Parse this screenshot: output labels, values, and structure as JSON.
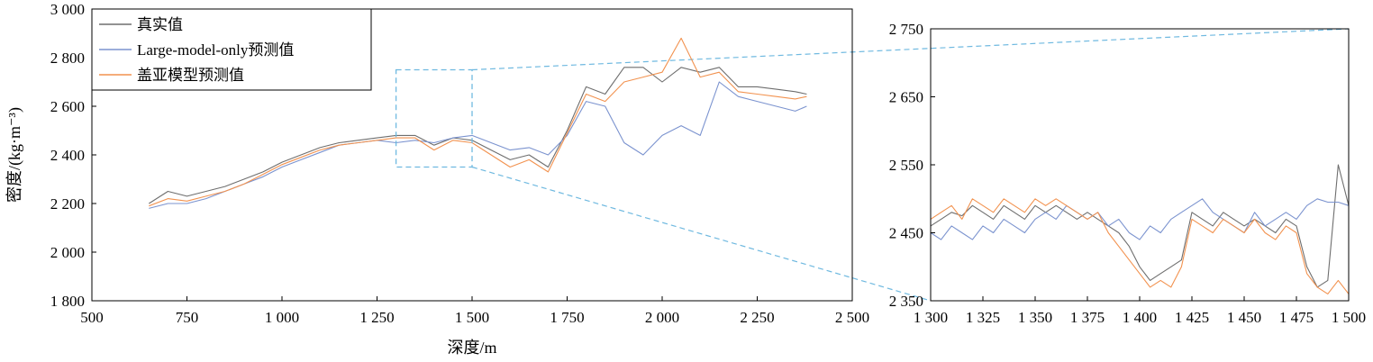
{
  "chart_data": [
    {
      "type": "line",
      "xlabel": "深度/m",
      "ylabel": "密度/(kg·m⁻³)",
      "xlim": [
        500,
        2500
      ],
      "ylim": [
        1800,
        3000
      ],
      "xticks": [
        500,
        750,
        1000,
        1250,
        1500,
        1750,
        2000,
        2250,
        2500
      ],
      "xtick_labels": [
        "500",
        "750",
        "1 000",
        "1 250",
        "1 500",
        "1 750",
        "2 000",
        "2 250",
        "2 500"
      ],
      "yticks": [
        1800,
        2000,
        2200,
        2400,
        2600,
        2800,
        3000
      ],
      "ytick_labels": [
        "1 800",
        "2 000",
        "2 200",
        "2 400",
        "2 600",
        "2 800",
        "3 000"
      ],
      "legend_position": "top-left",
      "grid": false,
      "zoom_region": {
        "x": [
          1300,
          1500
        ],
        "y": [
          2350,
          2750
        ]
      },
      "series": [
        {
          "name": "真实值",
          "color": "#6e6e6e",
          "x": [
            650,
            700,
            750,
            800,
            850,
            900,
            950,
            1000,
            1050,
            1100,
            1150,
            1200,
            1250,
            1300,
            1350,
            1400,
            1450,
            1500,
            1550,
            1600,
            1650,
            1700,
            1750,
            1800,
            1850,
            1900,
            1950,
            2000,
            2050,
            2100,
            2150,
            2200,
            2250,
            2300,
            2350,
            2380
          ],
          "y": [
            2200,
            2250,
            2230,
            2250,
            2270,
            2300,
            2330,
            2370,
            2400,
            2430,
            2450,
            2460,
            2470,
            2480,
            2480,
            2440,
            2470,
            2460,
            2420,
            2380,
            2400,
            2350,
            2500,
            2680,
            2650,
            2760,
            2760,
            2700,
            2760,
            2740,
            2760,
            2680,
            2680,
            2670,
            2660,
            2650
          ]
        },
        {
          "name": "Large-model-only预测值",
          "color": "#7b93cf",
          "x": [
            650,
            700,
            750,
            800,
            850,
            900,
            950,
            1000,
            1050,
            1100,
            1150,
            1200,
            1250,
            1300,
            1350,
            1400,
            1450,
            1500,
            1550,
            1600,
            1650,
            1700,
            1750,
            1800,
            1850,
            1900,
            1950,
            2000,
            2050,
            2100,
            2150,
            2200,
            2250,
            2300,
            2350,
            2380
          ],
          "y": [
            2180,
            2200,
            2200,
            2220,
            2250,
            2280,
            2310,
            2350,
            2380,
            2410,
            2440,
            2450,
            2460,
            2450,
            2460,
            2450,
            2470,
            2480,
            2450,
            2420,
            2430,
            2400,
            2480,
            2620,
            2600,
            2450,
            2400,
            2480,
            2520,
            2480,
            2700,
            2640,
            2620,
            2600,
            2580,
            2600
          ]
        },
        {
          "name": "盖亚模型预测值",
          "color": "#f2924f",
          "x": [
            650,
            700,
            750,
            800,
            850,
            900,
            950,
            1000,
            1050,
            1100,
            1150,
            1200,
            1250,
            1300,
            1350,
            1400,
            1450,
            1500,
            1550,
            1600,
            1650,
            1700,
            1750,
            1800,
            1850,
            1900,
            1950,
            2000,
            2050,
            2100,
            2150,
            2200,
            2250,
            2300,
            2350,
            2380
          ],
          "y": [
            2190,
            2220,
            2210,
            2230,
            2250,
            2280,
            2320,
            2360,
            2390,
            2420,
            2440,
            2450,
            2460,
            2470,
            2470,
            2420,
            2460,
            2450,
            2400,
            2350,
            2380,
            2330,
            2490,
            2650,
            2620,
            2700,
            2720,
            2740,
            2880,
            2720,
            2740,
            2660,
            2650,
            2640,
            2630,
            2640
          ]
        }
      ]
    },
    {
      "type": "line",
      "xlabel": "",
      "ylabel": "",
      "xlim": [
        1300,
        1500
      ],
      "ylim": [
        2350,
        2750
      ],
      "xticks": [
        1300,
        1325,
        1350,
        1375,
        1400,
        1425,
        1450,
        1475,
        1500
      ],
      "xtick_labels": [
        "1 300",
        "1 325",
        "1 350",
        "1 375",
        "1 400",
        "1 425",
        "1 450",
        "1 475",
        "1 500"
      ],
      "yticks": [
        2350,
        2450,
        2550,
        2650,
        2750
      ],
      "ytick_labels": [
        "2 350",
        "2 450",
        "2 550",
        "2 650",
        "2 750"
      ],
      "grid": false,
      "series": [
        {
          "name": "真实值",
          "color": "#6e6e6e",
          "x": [
            1300,
            1305,
            1310,
            1315,
            1320,
            1325,
            1330,
            1335,
            1340,
            1345,
            1350,
            1355,
            1360,
            1365,
            1370,
            1375,
            1380,
            1385,
            1390,
            1395,
            1400,
            1405,
            1410,
            1415,
            1420,
            1425,
            1430,
            1435,
            1440,
            1445,
            1450,
            1455,
            1460,
            1465,
            1470,
            1475,
            1480,
            1485,
            1490,
            1495,
            1500
          ],
          "y": [
            2460,
            2470,
            2480,
            2475,
            2490,
            2480,
            2470,
            2490,
            2480,
            2470,
            2490,
            2480,
            2490,
            2480,
            2470,
            2480,
            2470,
            2460,
            2450,
            2430,
            2400,
            2380,
            2390,
            2400,
            2410,
            2480,
            2470,
            2460,
            2480,
            2470,
            2460,
            2470,
            2460,
            2450,
            2470,
            2460,
            2400,
            2370,
            2380,
            2550,
            2490
          ]
        },
        {
          "name": "Large-model-only预测值",
          "color": "#7b93cf",
          "x": [
            1300,
            1305,
            1310,
            1315,
            1320,
            1325,
            1330,
            1335,
            1340,
            1345,
            1350,
            1355,
            1360,
            1365,
            1370,
            1375,
            1380,
            1385,
            1390,
            1395,
            1400,
            1405,
            1410,
            1415,
            1420,
            1425,
            1430,
            1435,
            1440,
            1445,
            1450,
            1455,
            1460,
            1465,
            1470,
            1475,
            1480,
            1485,
            1490,
            1495,
            1500
          ],
          "y": [
            2450,
            2440,
            2460,
            2450,
            2440,
            2460,
            2450,
            2470,
            2460,
            2450,
            2470,
            2480,
            2470,
            2490,
            2480,
            2470,
            2480,
            2460,
            2470,
            2450,
            2440,
            2460,
            2450,
            2470,
            2480,
            2490,
            2500,
            2480,
            2470,
            2460,
            2450,
            2480,
            2460,
            2470,
            2480,
            2470,
            2490,
            2500,
            2495,
            2495,
            2490
          ]
        },
        {
          "name": "盖亚模型预测值",
          "color": "#f2924f",
          "x": [
            1300,
            1305,
            1310,
            1315,
            1320,
            1325,
            1330,
            1335,
            1340,
            1345,
            1350,
            1355,
            1360,
            1365,
            1370,
            1375,
            1380,
            1385,
            1390,
            1395,
            1400,
            1405,
            1410,
            1415,
            1420,
            1425,
            1430,
            1435,
            1440,
            1445,
            1450,
            1455,
            1460,
            1465,
            1470,
            1475,
            1480,
            1485,
            1490,
            1495,
            1500
          ],
          "y": [
            2470,
            2480,
            2490,
            2470,
            2500,
            2490,
            2480,
            2500,
            2490,
            2480,
            2500,
            2490,
            2500,
            2490,
            2480,
            2470,
            2480,
            2450,
            2430,
            2410,
            2390,
            2370,
            2380,
            2370,
            2400,
            2470,
            2460,
            2450,
            2470,
            2460,
            2450,
            2470,
            2450,
            2440,
            2460,
            2450,
            2390,
            2370,
            2360,
            2380,
            2360
          ]
        }
      ]
    }
  ]
}
